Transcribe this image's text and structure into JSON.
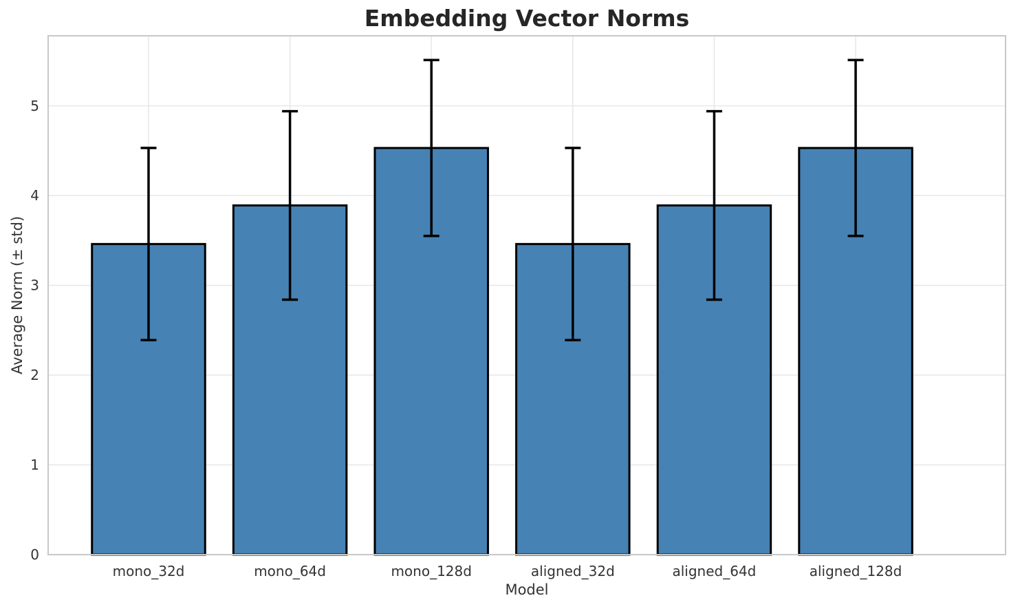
{
  "chart_data": {
    "type": "bar",
    "title": "Embedding Vector Norms",
    "xlabel": "Model",
    "ylabel": "Average Norm (± std)",
    "categories": [
      "mono_32d",
      "mono_64d",
      "mono_128d",
      "aligned_32d",
      "aligned_64d",
      "aligned_128d"
    ],
    "values": [
      3.46,
      3.89,
      4.53,
      3.46,
      3.89,
      4.53
    ],
    "errors": [
      1.07,
      1.05,
      0.98,
      1.07,
      1.05,
      0.98
    ],
    "yticks": [
      0,
      1,
      2,
      3,
      4,
      5
    ],
    "ylim": [
      0,
      5.78
    ],
    "grid": true,
    "legend_position": "none",
    "bar_color": "#4682b4",
    "bar_edge_color": "#000000",
    "error_color": "#000000",
    "grid_color": "#e8e8e8",
    "spine_color": "#c8c8c8",
    "tick_label_color": "#333333",
    "title_color": "#262626"
  }
}
